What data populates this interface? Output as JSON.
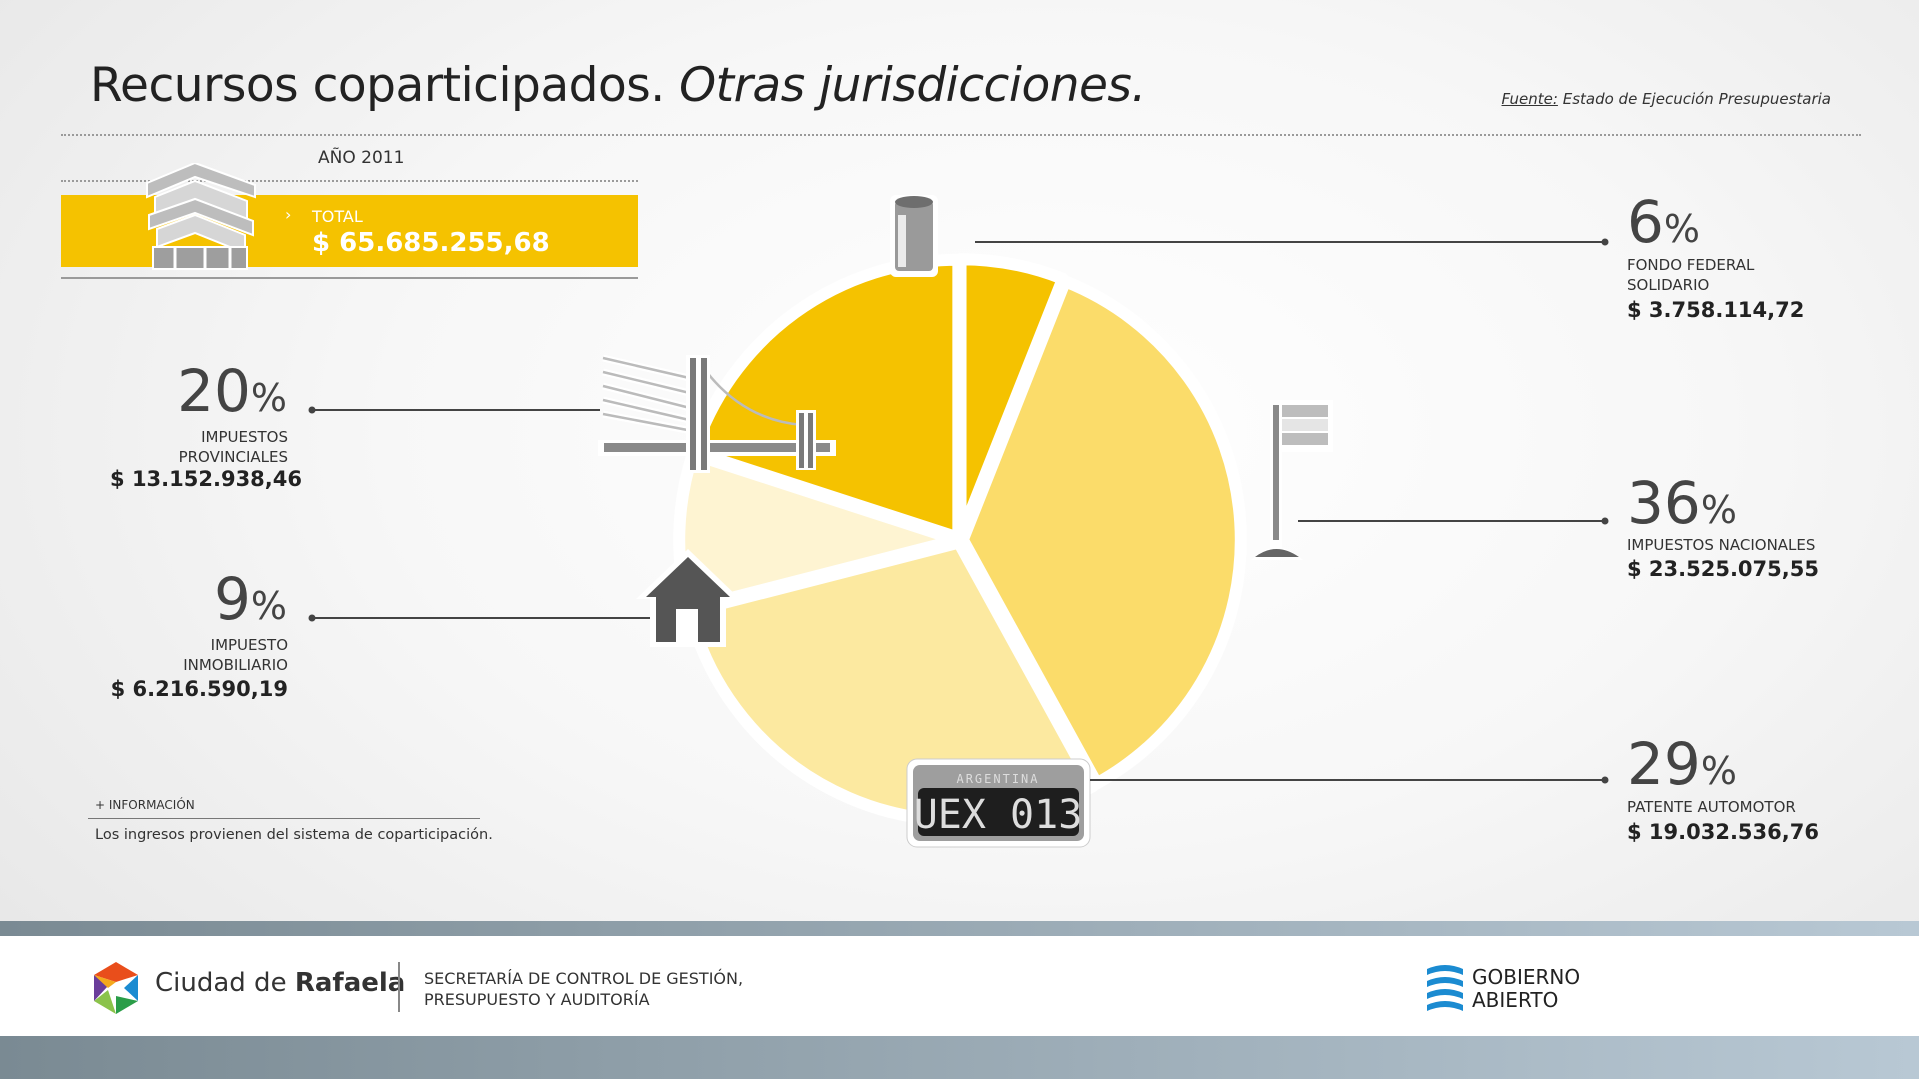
{
  "header": {
    "title_main": "Recursos coparticipados.",
    "title_italic": "Otras jurisdicciones.",
    "source_label": "Fuente:",
    "source_text": "Estado de Ejecución Presupuestaria"
  },
  "summary": {
    "year": "AÑO 2011",
    "total_label": "TOTAL",
    "total_value": "$ 65.685.255,68"
  },
  "chart_data": {
    "type": "pie",
    "slices": [
      {
        "label": "FONDO FEDERAL SOLIDARIO",
        "percent": 6,
        "amount": "$ 3.758.114,72",
        "color": "#f5c200",
        "icon": "can-icon"
      },
      {
        "label": "IMPUESTOS NACIONALES",
        "percent": 36,
        "amount": "$ 23.525.075,55",
        "color": "#fbdc6a",
        "icon": "flag-icon"
      },
      {
        "label": "PATENTE AUTOMOTOR",
        "percent": 29,
        "amount": "$ 19.032.536,76",
        "color": "#fce9a0",
        "icon": "license-plate-icon"
      },
      {
        "label": "IMPUESTO INMOBILIARIO",
        "percent": 9,
        "amount": "$ 6.216.590,19",
        "color": "#fef4d2",
        "icon": "house-icon"
      },
      {
        "label": "IMPUESTOS PROVINCIALES",
        "percent": 20,
        "amount": "$ 13.152.938,46",
        "color": "#f5c200",
        "icon": "bridge-icon"
      }
    ]
  },
  "labels": {
    "ffs_pct": "6",
    "ffs_l1": "FONDO FEDERAL",
    "ffs_l2": "SOLIDARIO",
    "ffs_amt": "$ 3.758.114,72",
    "nac_pct": "36",
    "nac_l1": "IMPUESTOS NACIONALES",
    "nac_amt": "$ 23.525.075,55",
    "pat_pct": "29",
    "pat_l1": "PATENTE AUTOMOTOR",
    "pat_amt": "$ 19.032.536,76",
    "prov_pct": "20",
    "prov_l1": "IMPUESTOS",
    "prov_l2": "PROVINCIALES",
    "prov_amt": "$ 13.152.938,46",
    "inm_pct": "9",
    "inm_l1": "IMPUESTO",
    "inm_l2": "INMOBILIARIO",
    "inm_amt": "$ 6.216.590,19",
    "percent_sign": "%"
  },
  "plate": {
    "country": "ARGENTINA",
    "number": "UEX 013"
  },
  "info": {
    "heading": "+ INFORMACIÓN",
    "text": "Los ingresos provienen del sistema de coparticipación."
  },
  "footer": {
    "city_prefix": "Ciudad de",
    "city_name": "Rafaela",
    "secretaria_l1": "SECRETARÍA DE CONTROL DE GESTIÓN,",
    "secretaria_l2": "PRESUPUESTO Y AUDITORÍA",
    "gob_l1": "GOBIERNO",
    "gob_l2": "ABIERTO"
  }
}
